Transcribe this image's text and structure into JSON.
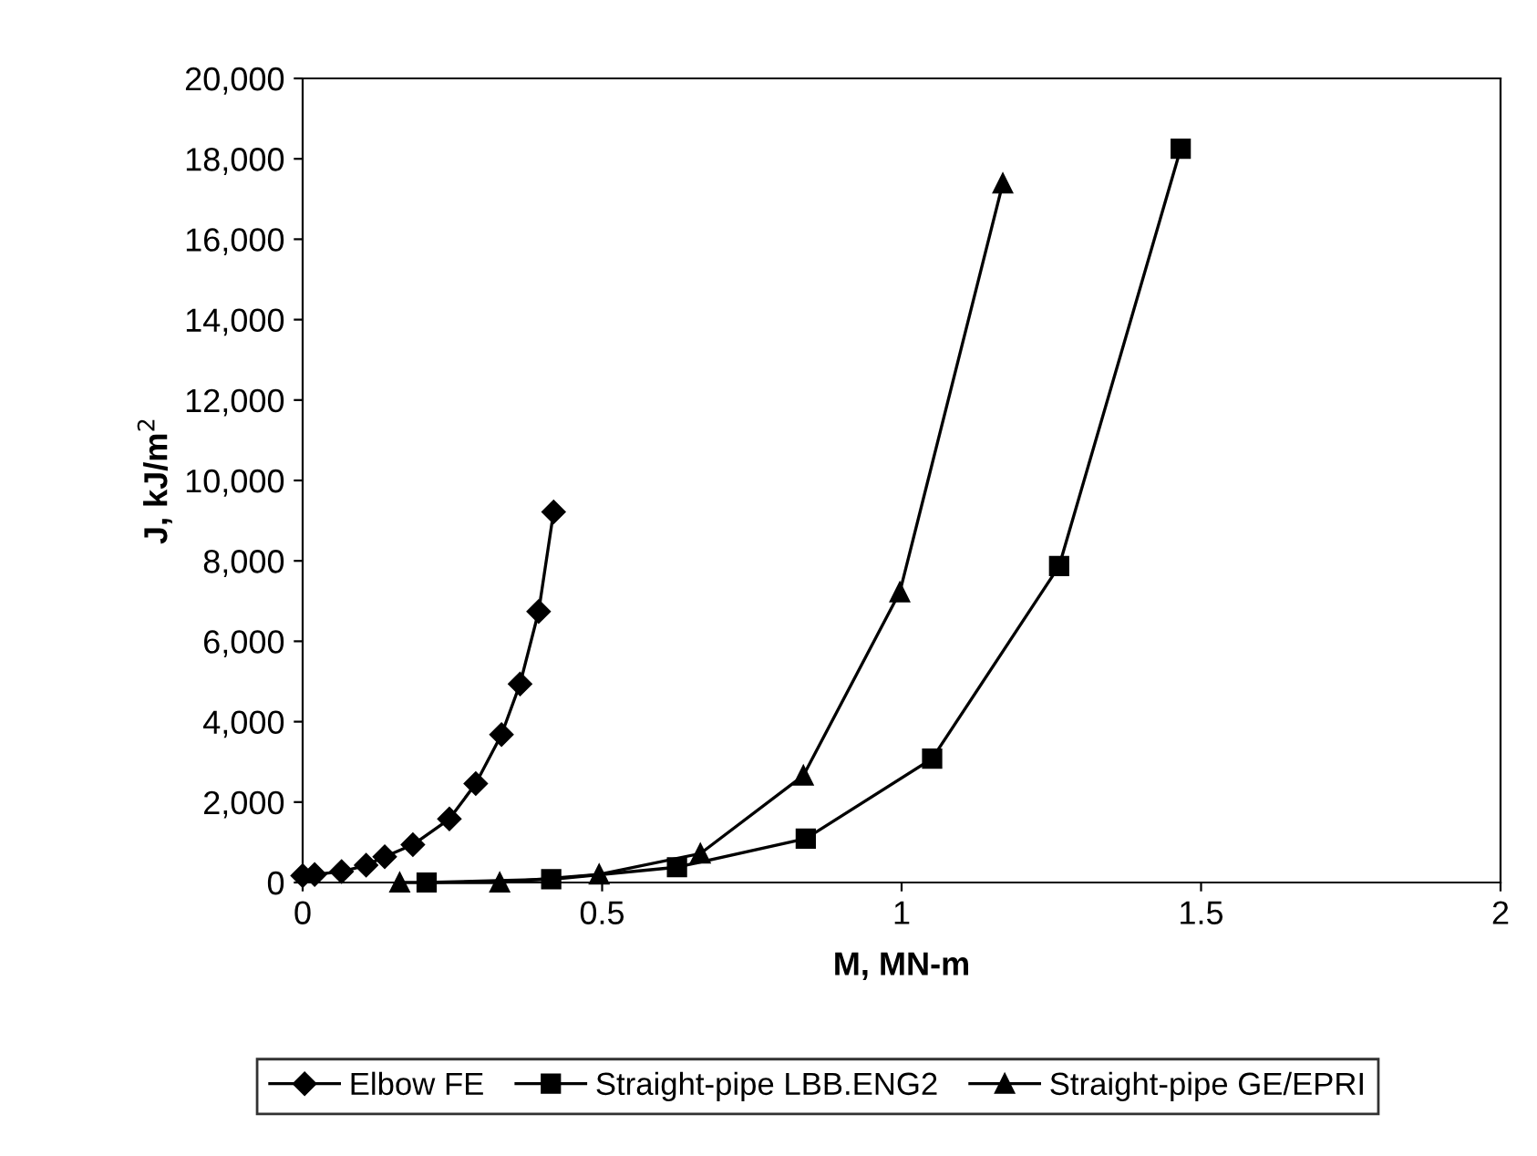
{
  "chart_data": {
    "type": "line",
    "xlabel": "M, MN-m",
    "ylabel": "J, kJ/m$^{2}$",
    "xlim": [
      0,
      2
    ],
    "xticks": [
      0,
      0.5,
      1,
      1.5,
      2
    ],
    "ylim": [
      0,
      20000
    ],
    "yticks": [
      {
        "value": 0,
        "label": "0"
      },
      {
        "value": 2000,
        "label": "2,000"
      },
      {
        "value": 4000,
        "label": "4,000"
      },
      {
        "value": 6000,
        "label": "6,000"
      },
      {
        "value": 8000,
        "label": "8,000"
      },
      {
        "value": 10000,
        "label": "10,000"
      },
      {
        "value": 12000,
        "label": "12,000"
      },
      {
        "value": 14000,
        "label": "14,000"
      },
      {
        "value": 16000,
        "label": "16,000"
      },
      {
        "value": 18000,
        "label": "18,000"
      },
      {
        "value": 20000,
        "label": "20,000"
      }
    ],
    "grid": false,
    "legend": "bottom",
    "line_style": "solid",
    "series": [
      {
        "name": "Elbow FE",
        "color": "#000000",
        "marker": "diamond",
        "x": [
          0,
          0.02,
          0.065,
          0.106,
          0.137,
          0.184,
          0.245,
          0.289,
          0.332,
          0.363,
          0.394,
          0.419
        ],
        "values": [
          170,
          200,
          270,
          430,
          640,
          940,
          1580,
          2460,
          3680,
          4940,
          6740,
          9220
        ]
      },
      {
        "name": "Straight-pipe LBB.ENG2",
        "color": "#000000",
        "marker": "square",
        "x": [
          0.207,
          0.415,
          0.625,
          0.84,
          1.051,
          1.263,
          1.466
        ],
        "values": [
          0,
          80,
          380,
          1090,
          3080,
          7870,
          18250
        ]
      },
      {
        "name": "Straight-pipe GE/EPRI",
        "color": "#000000",
        "marker": "triangle",
        "x": [
          0.162,
          0.329,
          0.495,
          0.664,
          0.836,
          0.997,
          1.169
        ],
        "values": [
          0,
          0,
          200,
          720,
          2660,
          7220,
          17390
        ]
      }
    ]
  }
}
